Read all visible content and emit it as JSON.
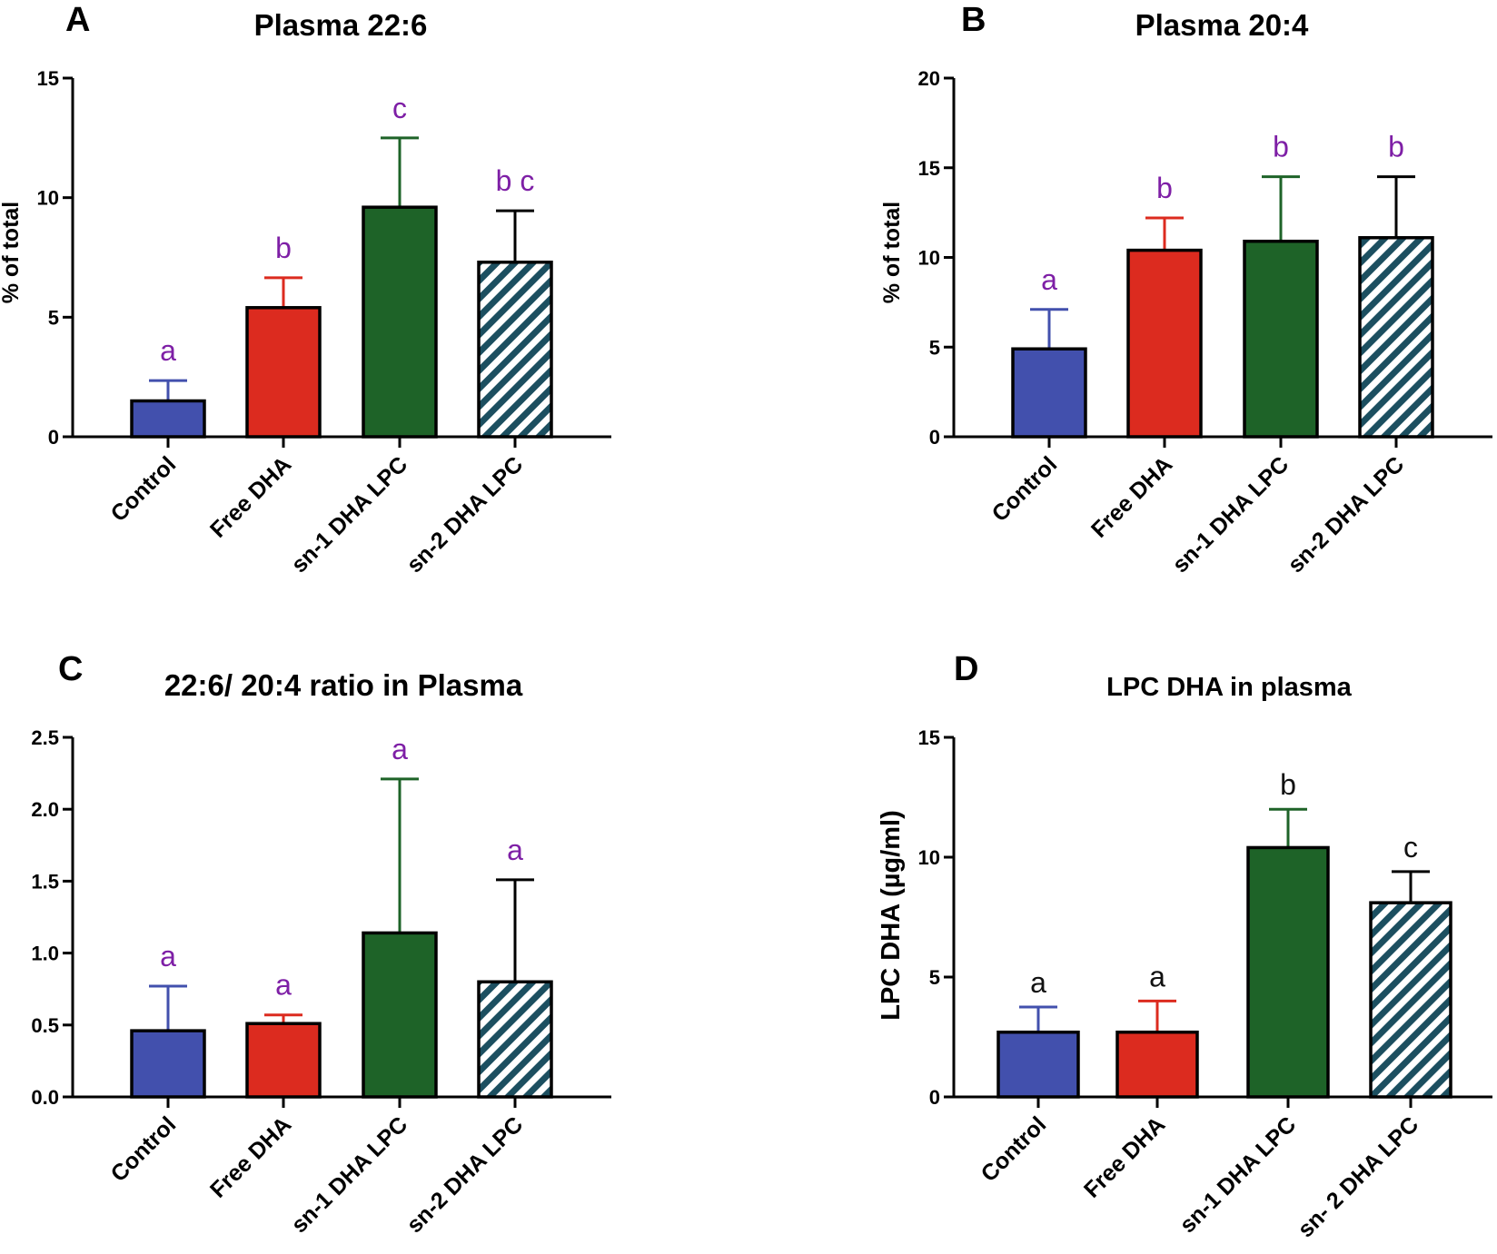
{
  "colors": {
    "control": "#4250ad",
    "free_dha": "#dc2b1f",
    "sn1": "#1e6328",
    "sn2_stripe": "#1c4f60",
    "sig_purple": "#7e1fa6",
    "sig_black": "#111111",
    "axis": "#000000"
  },
  "chart_data": [
    {
      "panel": "A",
      "type": "bar",
      "title": "Plasma 22:6",
      "xlabel": "",
      "ylabel": "% of total",
      "ylim": [
        0,
        15
      ],
      "yticks": [
        0,
        5,
        10,
        15
      ],
      "ytick_labels": [
        "0",
        "5",
        "10",
        "15"
      ],
      "categories": [
        "Control",
        "Free DHA",
        "sn-1 DHA LPC",
        "sn-2 DHA LPC"
      ],
      "values": [
        1.5,
        5.4,
        9.6,
        7.3
      ],
      "errors": [
        0.85,
        1.25,
        2.9,
        2.15
      ],
      "significance": [
        "a",
        "b",
        "c",
        "b c"
      ],
      "significance_color": "purple"
    },
    {
      "panel": "B",
      "type": "bar",
      "title": "Plasma 20:4",
      "xlabel": "",
      "ylabel": "% of total",
      "ylim": [
        0,
        20
      ],
      "yticks": [
        0,
        5,
        10,
        15,
        20
      ],
      "ytick_labels": [
        "0",
        "5",
        "10",
        "15",
        "20"
      ],
      "categories": [
        "Control",
        "Free DHA",
        "sn-1 DHA LPC",
        "sn-2 DHA LPC"
      ],
      "values": [
        4.9,
        10.4,
        10.9,
        11.1
      ],
      "errors": [
        2.2,
        1.8,
        3.6,
        3.4
      ],
      "significance": [
        "a",
        "b",
        "b",
        "b"
      ],
      "significance_color": "purple"
    },
    {
      "panel": "C",
      "type": "bar",
      "title": "22:6/ 20:4 ratio in Plasma",
      "xlabel": "",
      "ylabel": "",
      "ylim": [
        0,
        2.5
      ],
      "yticks": [
        0,
        0.5,
        1,
        1.5,
        2,
        2.5
      ],
      "ytick_labels": [
        "0.0",
        "0.5",
        "1.0",
        "1.5",
        "2.0",
        "2.5"
      ],
      "categories": [
        "Control",
        "Free DHA",
        "sn-1 DHA LPC",
        "sn-2 DHA LPC"
      ],
      "values": [
        0.46,
        0.51,
        1.14,
        0.8
      ],
      "errors": [
        0.31,
        0.06,
        1.07,
        0.71
      ],
      "significance": [
        "a",
        "a",
        "a",
        "a"
      ],
      "significance_color": "purple"
    },
    {
      "panel": "D",
      "type": "bar",
      "title": "LPC DHA in plasma",
      "xlabel": "",
      "ylabel": "LPC DHA (µg/ml)",
      "ylim": [
        0,
        15
      ],
      "yticks": [
        0,
        5,
        10,
        15
      ],
      "ytick_labels": [
        "0",
        "5",
        "10",
        "15"
      ],
      "categories": [
        "Control",
        "Free DHA",
        "sn-1 DHA LPC",
        "sn- 2 DHA LPC"
      ],
      "values": [
        2.7,
        2.7,
        10.4,
        8.1
      ],
      "errors": [
        1.05,
        1.3,
        1.6,
        1.3
      ],
      "significance": [
        "a",
        "a",
        "b",
        "c"
      ],
      "significance_color": "black"
    }
  ]
}
